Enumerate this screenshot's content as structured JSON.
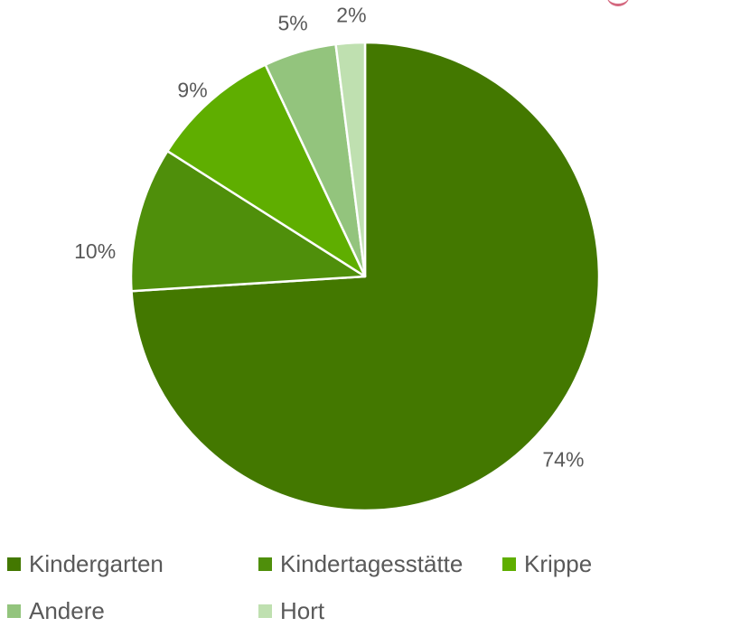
{
  "chart_data": {
    "type": "pie",
    "title": "",
    "categories": [
      "Kindergarten",
      "Kindertagesstätte",
      "Krippe",
      "Andere",
      "Hort"
    ],
    "values": [
      74,
      10,
      9,
      5,
      2
    ],
    "value_labels": [
      "74%",
      "10%",
      "9%",
      "5%",
      "2%"
    ],
    "unit": "%",
    "start_angle": "12 o'clock",
    "direction": "clockwise",
    "colors": [
      "#437800",
      "#4f8f0b",
      "#5fae00",
      "#93c47d",
      "#bfe0b0"
    ],
    "legend_position": "bottom"
  }
}
